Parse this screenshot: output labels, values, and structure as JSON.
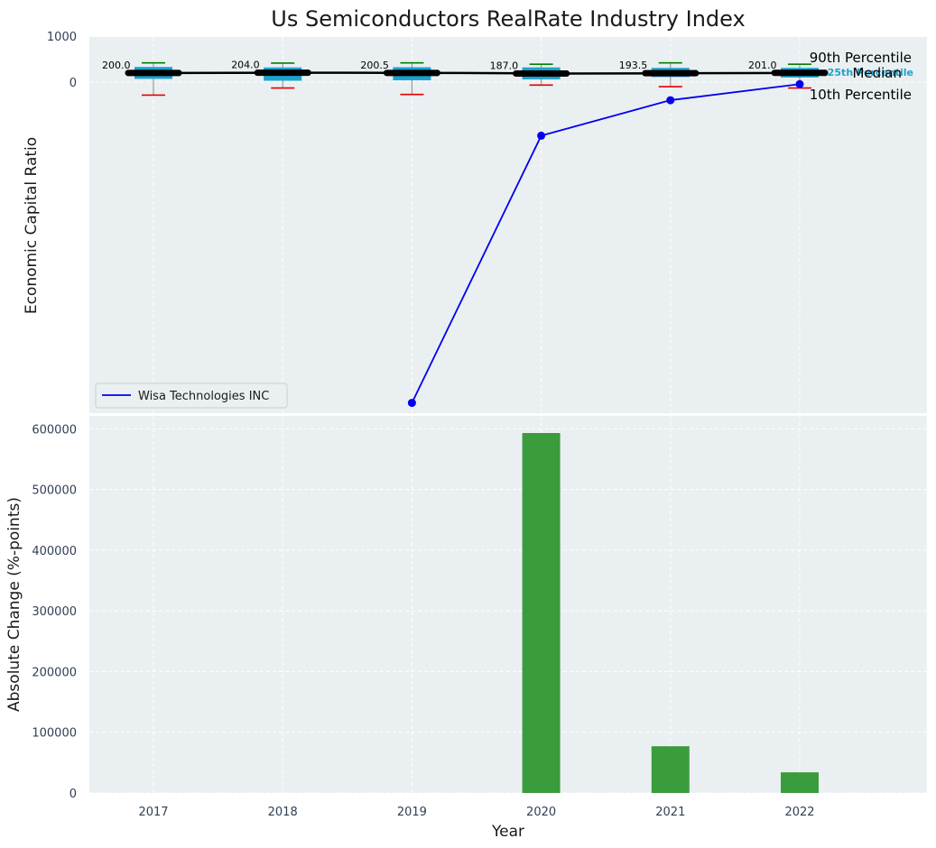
{
  "chart_data": [
    {
      "type": "box",
      "title": "Us Semiconductors RealRate Industry Index",
      "ylabel": "Economic Capital Ratio",
      "xlabel": "",
      "categories": [
        "2017",
        "2018",
        "2019",
        "2020",
        "2021",
        "2022"
      ],
      "yticks": [
        0,
        1000
      ],
      "yticklabels": [
        "0",
        "1000"
      ],
      "industry_boxes": [
        {
          "year": "2017",
          "p10": -285,
          "p25": 70,
          "median": 200.0,
          "p75": 330,
          "p90": 420,
          "median_label": "200.0"
        },
        {
          "year": "2018",
          "p10": -130,
          "p25": 30,
          "median": 204.0,
          "p75": 320,
          "p90": 415,
          "median_label": "204.0"
        },
        {
          "year": "2019",
          "p10": -270,
          "p25": 40,
          "median": 200.5,
          "p75": 325,
          "p90": 420,
          "median_label": "200.5"
        },
        {
          "year": "2020",
          "p10": -65,
          "p25": 60,
          "median": 187.0,
          "p75": 320,
          "p90": 390,
          "median_label": "187.0"
        },
        {
          "year": "2021",
          "p10": -100,
          "p25": 110,
          "median": 193.5,
          "p75": 310,
          "p90": 420,
          "median_label": "193.5"
        },
        {
          "year": "2022",
          "p10": -130,
          "p25": 100,
          "median": 201.0,
          "p75": 310,
          "p90": 390,
          "median_label": "201.0"
        }
      ],
      "series": [
        {
          "name": "Wisa Technologies INC",
          "color": "#0000ee",
          "x": [
            "2019",
            "2020",
            "2021",
            "2022"
          ],
          "values": [
            -7000,
            -1170,
            -395,
            -45
          ]
        }
      ],
      "annotations": {
        "p90": "90th Percentile",
        "p25": "25th Percentile",
        "median": "Median",
        "p10": "10th Percentile"
      },
      "colors": {
        "box_fill": "#1aa3cf",
        "median_line": "#000000",
        "whisker_high": "#008000",
        "whisker_low": "#e60000",
        "background": "#eaeff1"
      },
      "legend": "lower-left",
      "grid": true
    },
    {
      "type": "bar",
      "title": "",
      "xlabel": "Year",
      "ylabel": "Absolute Change (%-points)",
      "categories": [
        "2017",
        "2018",
        "2019",
        "2020",
        "2021",
        "2022"
      ],
      "values": [
        0,
        0,
        0,
        593000,
        77000,
        34000
      ],
      "ylim": [
        0,
        620000
      ],
      "yticks": [
        0,
        100000,
        200000,
        300000,
        400000,
        500000,
        600000
      ],
      "color": "#3a9c3d",
      "grid": true
    }
  ]
}
